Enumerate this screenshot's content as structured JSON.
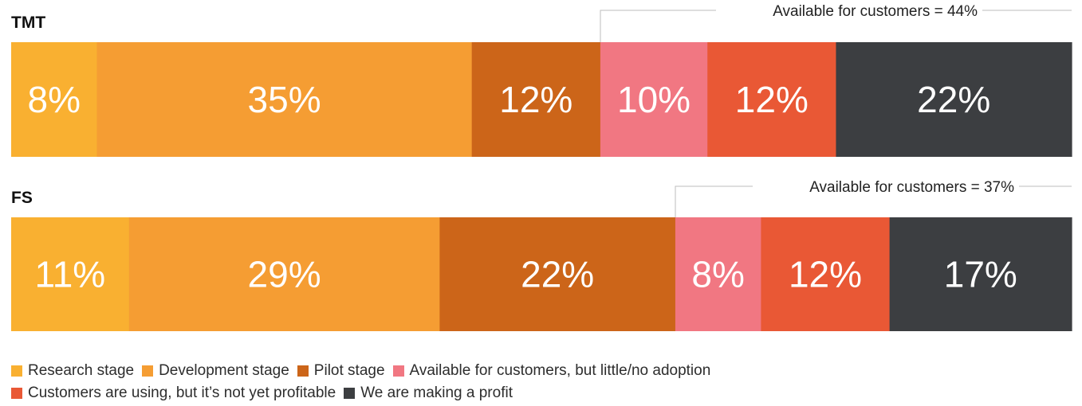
{
  "chart_data": {
    "type": "bar",
    "orientation": "horizontal-stacked-100",
    "categories": [
      "Research stage",
      "Development stage",
      "Pilot stage",
      "Available for customers, but little/no adoption",
      "Customers are using, but it’s not yet profitable",
      "We are making a profit"
    ],
    "colors": [
      "#F9B031",
      "#F59D33",
      "#CC6519",
      "#F17782",
      "#E95835",
      "#3C3E41"
    ],
    "bars": [
      {
        "name": "TMT",
        "values": [
          8,
          35,
          12,
          10,
          12,
          22
        ],
        "value_labels": [
          "8%",
          "35%",
          "12%",
          "10%",
          "12%",
          "22%"
        ],
        "annotation": "Available for customers = 44%"
      },
      {
        "name": "FS",
        "values": [
          11,
          29,
          22,
          8,
          12,
          17
        ],
        "value_labels": [
          "11%",
          "29%",
          "22%",
          "8%",
          "12%",
          "17%"
        ],
        "annotation": "Available for customers = 37%"
      }
    ],
    "legend_position": "bottom",
    "grid": false
  },
  "legend": {
    "rows": [
      [
        {
          "label": "Research stage",
          "color": "#F9B031"
        },
        {
          "label": "Development stage",
          "color": "#F59D33"
        },
        {
          "label": "Pilot stage",
          "color": "#CC6519"
        },
        {
          "label": "Available for customers, but little/no adoption",
          "color": "#F17782"
        }
      ],
      [
        {
          "label": "Customers are using, but it’s not yet profitable",
          "color": "#E95835"
        },
        {
          "label": "We are making a profit",
          "color": "#3C3E41"
        }
      ]
    ]
  }
}
